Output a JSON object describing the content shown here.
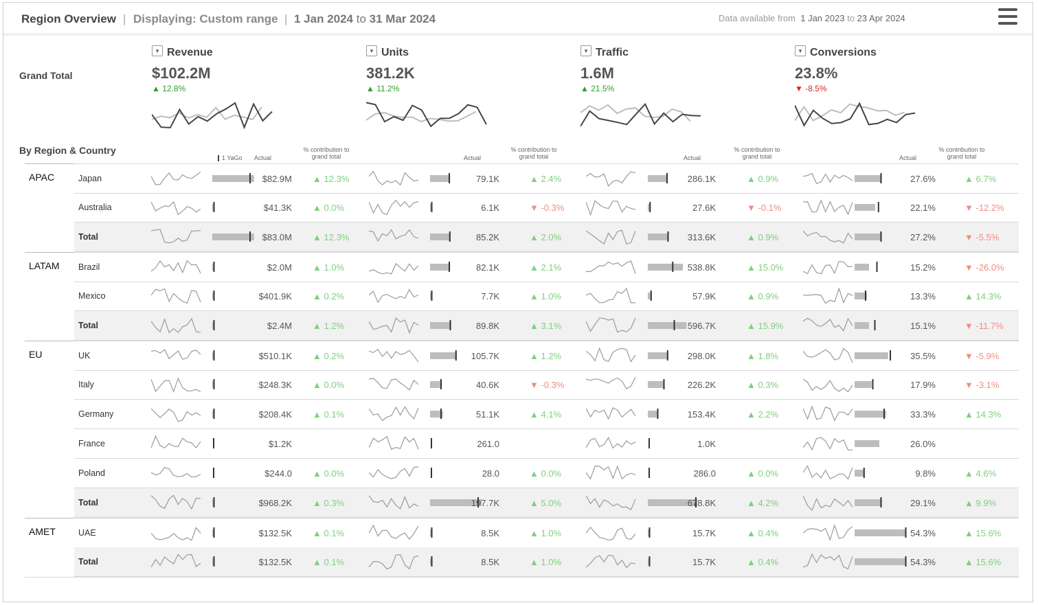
{
  "header": {
    "title": "Region Overview",
    "sep": "|",
    "displaying": "Displaying: Custom range",
    "range_start": "1 Jan 2024",
    "range_to": "to",
    "range_end": "31 Mar 2024",
    "avail_prefix": "Data available from",
    "avail_start": "1 Jan 2023",
    "avail_to": "to",
    "avail_end": "23 Apr 2024"
  },
  "colors": {
    "up": "#2e9d2e",
    "down": "#d62728",
    "up_light": "#7fcf7f",
    "down_light": "#f28c80",
    "spark": "#999999",
    "bar": "#bdbdbd"
  },
  "grand_total": {
    "label": "Grand Total",
    "kpis": [
      {
        "title": "Revenue",
        "value": "$102.2M",
        "delta": "12.8%",
        "dir": "up"
      },
      {
        "title": "Units",
        "value": "381.2K",
        "delta": "11.2%",
        "dir": "up"
      },
      {
        "title": "Traffic",
        "value": "1.6M",
        "delta": "21.5%",
        "dir": "up"
      },
      {
        "title": "Conversions",
        "value": "23.8%",
        "delta": "-8.5%",
        "dir": "down"
      }
    ]
  },
  "table": {
    "section_label": "By Region & Country",
    "col_headers": {
      "yago": "1 YaGo",
      "actual": "Actual",
      "contribution": "% contribution to grand total"
    },
    "regions": [
      {
        "name": "APAC",
        "rows": [
          {
            "name": "Japan",
            "total": false,
            "cells": [
              {
                "actual": "$82.9M",
                "pct": "12.3%",
                "dir": "up",
                "bar": 0.81,
                "yago": 0.72
              },
              {
                "actual": "79.1K",
                "pct": "2.4%",
                "dir": "up",
                "bar": 0.39,
                "yago": 0.36
              },
              {
                "actual": "286.1K",
                "pct": "0.9%",
                "dir": "up",
                "bar": 0.38,
                "yago": 0.36
              },
              {
                "actual": "27.6%",
                "pct": "6.7%",
                "dir": "up",
                "bar": 0.5,
                "yago": 0.5
              }
            ]
          },
          {
            "name": "Australia",
            "total": false,
            "cells": [
              {
                "actual": "$41.3K",
                "pct": "0.0%",
                "dir": "up",
                "bar": 0.02,
                "yago": 0.02
              },
              {
                "actual": "6.1K",
                "pct": "-0.3%",
                "dir": "down",
                "bar": 0.02,
                "yago": 0.02
              },
              {
                "actual": "27.6K",
                "pct": "-0.1%",
                "dir": "down",
                "bar": 0.03,
                "yago": 0.03
              },
              {
                "actual": "22.1%",
                "pct": "-12.2%",
                "dir": "down",
                "bar": 0.4,
                "yago": 0.45
              }
            ]
          },
          {
            "name": "Total",
            "total": true,
            "cells": [
              {
                "actual": "$83.0M",
                "pct": "12.3%",
                "dir": "up",
                "bar": 0.81,
                "yago": 0.72
              },
              {
                "actual": "85.2K",
                "pct": "2.0%",
                "dir": "up",
                "bar": 0.4,
                "yago": 0.37
              },
              {
                "actual": "313.6K",
                "pct": "0.9%",
                "dir": "up",
                "bar": 0.4,
                "yago": 0.38
              },
              {
                "actual": "27.2%",
                "pct": "-5.5%",
                "dir": "down",
                "bar": 0.5,
                "yago": 0.5
              }
            ]
          }
        ]
      },
      {
        "name": "LATAM",
        "rows": [
          {
            "name": "Brazil",
            "total": false,
            "cells": [
              {
                "actual": "$2.0M",
                "pct": "1.0%",
                "dir": "up",
                "bar": 0.02,
                "yago": 0.02
              },
              {
                "actual": "82.1K",
                "pct": "2.1%",
                "dir": "up",
                "bar": 0.39,
                "yago": 0.36
              },
              {
                "actual": "538.8K",
                "pct": "15.0%",
                "dir": "up",
                "bar": 0.68,
                "yago": 0.47
              },
              {
                "actual": "15.2%",
                "pct": "-26.0%",
                "dir": "down",
                "bar": 0.28,
                "yago": 0.42
              }
            ]
          },
          {
            "name": "Mexico",
            "total": false,
            "cells": [
              {
                "actual": "$401.9K",
                "pct": "0.2%",
                "dir": "up",
                "bar": 0.02,
                "yago": 0.02
              },
              {
                "actual": "7.7K",
                "pct": "1.0%",
                "dir": "up",
                "bar": 0.02,
                "yago": 0.02
              },
              {
                "actual": "57.9K",
                "pct": "0.9%",
                "dir": "up",
                "bar": 0.05,
                "yago": 0.05
              },
              {
                "actual": "13.3%",
                "pct": "14.3%",
                "dir": "up",
                "bar": 0.24,
                "yago": 0.2
              }
            ]
          },
          {
            "name": "Total",
            "total": true,
            "cells": [
              {
                "actual": "$2.4M",
                "pct": "1.2%",
                "dir": "up",
                "bar": 0.02,
                "yago": 0.02
              },
              {
                "actual": "89.8K",
                "pct": "3.1%",
                "dir": "up",
                "bar": 0.41,
                "yago": 0.38
              },
              {
                "actual": "596.7K",
                "pct": "15.9%",
                "dir": "up",
                "bar": 0.75,
                "yago": 0.5
              },
              {
                "actual": "15.1%",
                "pct": "-11.7%",
                "dir": "down",
                "bar": 0.28,
                "yago": 0.38
              }
            ]
          }
        ]
      },
      {
        "name": "EU",
        "rows": [
          {
            "name": "UK",
            "total": false,
            "cells": [
              {
                "actual": "$510.1K",
                "pct": "0.2%",
                "dir": "up",
                "bar": 0.02,
                "yago": 0.02
              },
              {
                "actual": "105.7K",
                "pct": "1.2%",
                "dir": "up",
                "bar": 0.52,
                "yago": 0.49
              },
              {
                "actual": "298.0K",
                "pct": "1.8%",
                "dir": "up",
                "bar": 0.4,
                "yago": 0.37
              },
              {
                "actual": "35.5%",
                "pct": "-5.9%",
                "dir": "down",
                "bar": 0.65,
                "yago": 0.68
              }
            ]
          },
          {
            "name": "Italy",
            "total": false,
            "cells": [
              {
                "actual": "$248.3K",
                "pct": "0.0%",
                "dir": "up",
                "bar": 0.02,
                "yago": 0.02
              },
              {
                "actual": "40.6K",
                "pct": "-0.3%",
                "dir": "down",
                "bar": 0.2,
                "yago": 0.2
              },
              {
                "actual": "226.2K",
                "pct": "0.3%",
                "dir": "up",
                "bar": 0.3,
                "yago": 0.3
              },
              {
                "actual": "17.9%",
                "pct": "-3.1%",
                "dir": "down",
                "bar": 0.33,
                "yago": 0.34
              }
            ]
          },
          {
            "name": "Germany",
            "total": false,
            "cells": [
              {
                "actual": "$208.4K",
                "pct": "0.1%",
                "dir": "up",
                "bar": 0.02,
                "yago": 0.02
              },
              {
                "actual": "51.1K",
                "pct": "4.1%",
                "dir": "up",
                "bar": 0.25,
                "yago": 0.2
              },
              {
                "actual": "153.4K",
                "pct": "2.2%",
                "dir": "up",
                "bar": 0.2,
                "yago": 0.18
              },
              {
                "actual": "33.3%",
                "pct": "14.3%",
                "dir": "up",
                "bar": 0.61,
                "yago": 0.56
              }
            ]
          },
          {
            "name": "France",
            "total": false,
            "cells": [
              {
                "actual": "$1.2K",
                "pct": "",
                "dir": "up",
                "bar": 0.0,
                "yago": 0.0
              },
              {
                "actual": "261.0",
                "pct": "",
                "dir": "up",
                "bar": 0.0,
                "yago": 0.0
              },
              {
                "actual": "1.0K",
                "pct": "",
                "dir": "up",
                "bar": 0.0,
                "yago": 0.0
              },
              {
                "actual": "26.0%",
                "pct": "",
                "dir": "up",
                "bar": 0.48,
                "yago": -1
              }
            ]
          },
          {
            "name": "Poland",
            "total": false,
            "cells": [
              {
                "actual": "$244.0",
                "pct": "0.0%",
                "dir": "up",
                "bar": 0.0,
                "yago": 0.0
              },
              {
                "actual": "28.0",
                "pct": "0.0%",
                "dir": "up",
                "bar": 0.0,
                "yago": 0.0
              },
              {
                "actual": "286.0",
                "pct": "0.0%",
                "dir": "up",
                "bar": 0.0,
                "yago": 0.0
              },
              {
                "actual": "9.8%",
                "pct": "4.6%",
                "dir": "up",
                "bar": 0.18,
                "yago": 0.17
              }
            ]
          },
          {
            "name": "Total",
            "total": true,
            "cells": [
              {
                "actual": "$968.2K",
                "pct": "0.3%",
                "dir": "up",
                "bar": 0.02,
                "yago": 0.02
              },
              {
                "actual": "197.7K",
                "pct": "5.0%",
                "dir": "up",
                "bar": 1.0,
                "yago": 0.92
              },
              {
                "actual": "678.8K",
                "pct": "4.2%",
                "dir": "up",
                "bar": 0.96,
                "yago": 0.92
              },
              {
                "actual": "29.1%",
                "pct": "9.9%",
                "dir": "up",
                "bar": 0.53,
                "yago": 0.5
              }
            ]
          }
        ]
      },
      {
        "name": "AMET",
        "rows": [
          {
            "name": "UAE",
            "total": false,
            "cells": [
              {
                "actual": "$132.5K",
                "pct": "0.1%",
                "dir": "up",
                "bar": 0.02,
                "yago": 0.02
              },
              {
                "actual": "8.5K",
                "pct": "1.0%",
                "dir": "up",
                "bar": 0.02,
                "yago": 0.02
              },
              {
                "actual": "15.7K",
                "pct": "0.4%",
                "dir": "up",
                "bar": 0.02,
                "yago": 0.02
              },
              {
                "actual": "54.3%",
                "pct": "15.6%",
                "dir": "up",
                "bar": 1.0,
                "yago": 0.98
              }
            ]
          },
          {
            "name": "Total",
            "total": true,
            "cells": [
              {
                "actual": "$132.5K",
                "pct": "0.1%",
                "dir": "up",
                "bar": 0.02,
                "yago": 0.02
              },
              {
                "actual": "8.5K",
                "pct": "1.0%",
                "dir": "up",
                "bar": 0.02,
                "yago": 0.02
              },
              {
                "actual": "15.7K",
                "pct": "0.4%",
                "dir": "up",
                "bar": 0.02,
                "yago": 0.02
              },
              {
                "actual": "54.3%",
                "pct": "15.6%",
                "dir": "up",
                "bar": 1.0,
                "yago": 0.98
              }
            ]
          }
        ]
      }
    ]
  }
}
